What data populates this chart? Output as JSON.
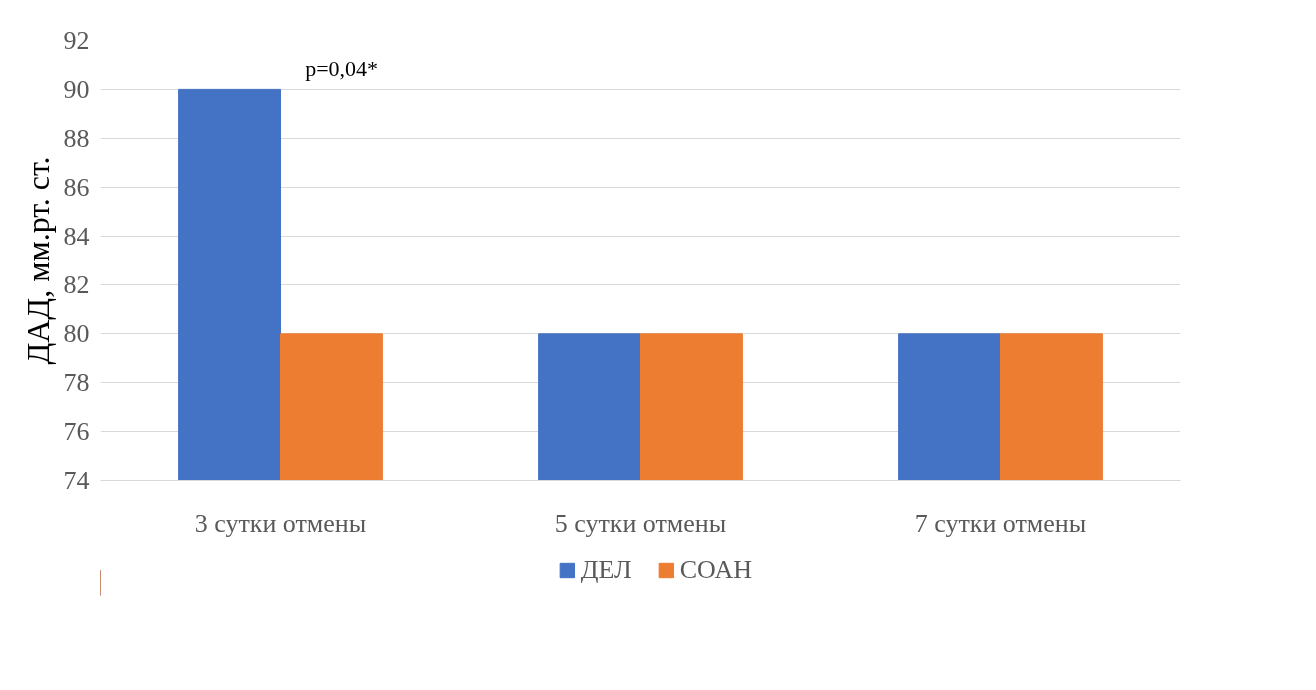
{
  "chart_data": {
    "type": "bar",
    "ylabel": "ДАД, мм.рт. ст.",
    "categories": [
      "3 сутки отмены",
      "5 сутки отмены",
      "7 сутки отмены"
    ],
    "series": [
      {
        "name": "ДЕЛ",
        "color": "#4472c4",
        "values": [
          90,
          80,
          80
        ]
      },
      {
        "name": "СОАН",
        "color": "#ed7d31",
        "values": [
          80,
          80,
          80
        ]
      }
    ],
    "ylim": [
      74,
      92
    ],
    "yticks": [
      74,
      76,
      78,
      80,
      82,
      84,
      86,
      88,
      90,
      92
    ],
    "grid": "y",
    "legend": "bottom",
    "annotations": [
      {
        "text": "p=0,04*",
        "x": "3 сутки отмены",
        "y": 90
      }
    ]
  }
}
